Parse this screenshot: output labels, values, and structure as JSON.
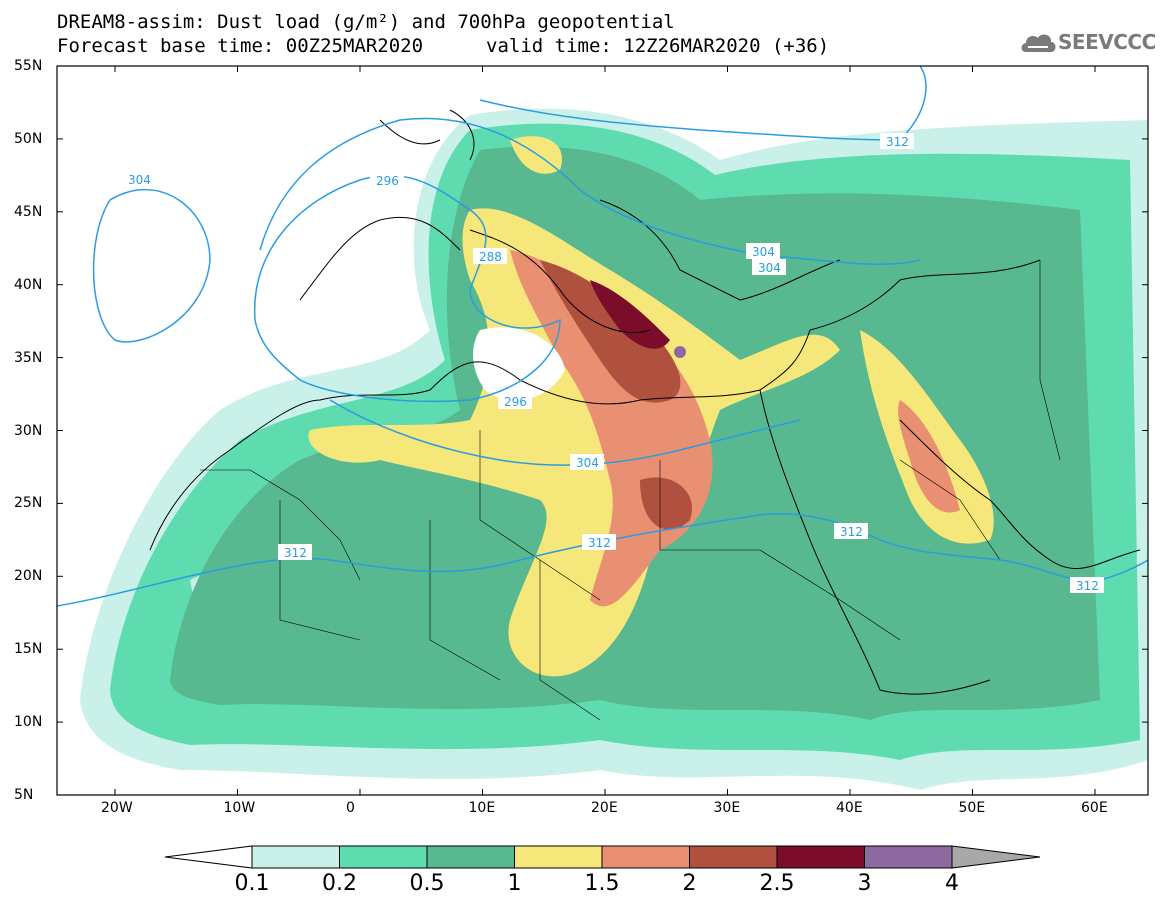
{
  "title": {
    "line1": "DREAM8-assim: Dust load (g/m²) and 700hPa geopotential",
    "line2_left": "Forecast base time: 00Z25MAR2020",
    "line2_right": "valid time: 12Z26MAR2020 (+36)"
  },
  "logo": {
    "text": "SEEVCCC",
    "icon": "cloud-icon"
  },
  "map": {
    "lat_labels": [
      "55N",
      "50N",
      "45N",
      "40N",
      "35N",
      "30N",
      "25N",
      "20N",
      "15N",
      "10N",
      "5N"
    ],
    "lon_labels": [
      "20W",
      "10W",
      "0",
      "10E",
      "20E",
      "30E",
      "40E",
      "50E",
      "60E"
    ],
    "contour_labels": [
      "304",
      "296",
      "312",
      "288",
      "296",
      "304",
      "304",
      "312",
      "312",
      "312",
      "312",
      "304"
    ]
  },
  "colorbar": {
    "labels": [
      "0.1",
      "0.2",
      "0.5",
      "1",
      "1.5",
      "2",
      "2.5",
      "3",
      "4"
    ],
    "colors": [
      "#c9f1e9",
      "#5edcb0",
      "#58b88f",
      "#f5e77a",
      "#ea9072",
      "#b0503f",
      "#7b0c2a",
      "#8c6aa0",
      "#a8a8a8"
    ]
  }
}
